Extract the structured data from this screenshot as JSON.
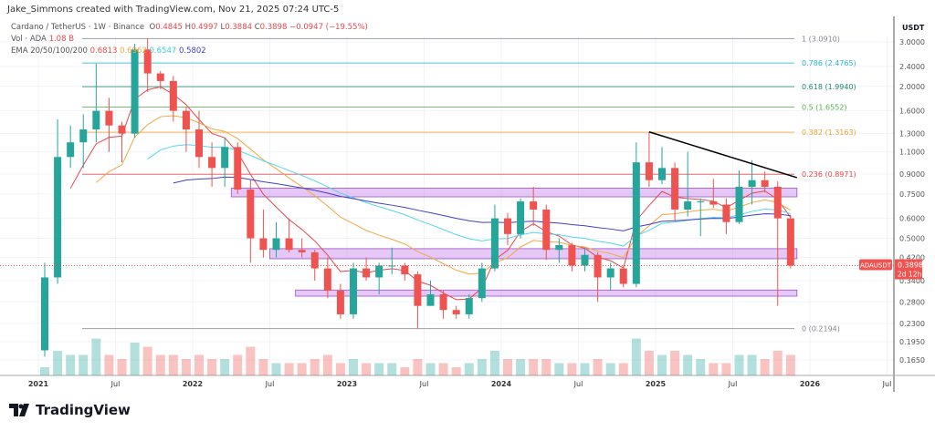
{
  "credit": "Jake_Simmons created with TradingView.com, Nov 21, 2025 07:24 UTC-5",
  "legend": {
    "symbol": "Cardano / TetherUS · 1W · Binance",
    "o_label": "O",
    "o": "0.4845",
    "h_label": "H",
    "h": "0.4997",
    "l_label": "L",
    "l": "0.3884",
    "c_label": "C",
    "c": "0.3898",
    "change": "−0.0947 (−19.55%)",
    "vol_label": "Vol · ADA",
    "vol": "1.08 B",
    "ema_label": "EMA 20/50/100/200",
    "ema20": "0.6813",
    "ema50": "0.6962",
    "ema100": "0.6547",
    "ema200": "0.5802"
  },
  "logo": "TradingView",
  "colors": {
    "up": "#26a69a",
    "down": "#ef5350",
    "ema20": "#e5484d",
    "ema50": "#f5a742",
    "ema100": "#56d6e8",
    "ema200": "#3f3fc8",
    "zone": "#c586e8"
  },
  "chart_data": {
    "type": "candlestick",
    "yscale": "log",
    "ylim": [
      0.15,
      3.4
    ],
    "axis_unit": "USDT",
    "y_ticks": [
      "3.0000",
      "2.4000",
      "2.0000",
      "1.6000",
      "1.3000",
      "1.1000",
      "0.9000",
      "0.7500",
      "0.6000",
      "0.5000",
      "0.4200",
      "0.3400",
      "0.2800",
      "0.2300",
      "0.1950",
      "0.1650"
    ],
    "x_ticks": [
      {
        "label": "2021",
        "date": 2021.0
      },
      {
        "label": "Jul",
        "date": 2021.5
      },
      {
        "label": "2022",
        "date": 2022.0
      },
      {
        "label": "Jul",
        "date": 2022.5
      },
      {
        "label": "2023",
        "date": 2023.0
      },
      {
        "label": "Jul",
        "date": 2023.5
      },
      {
        "label": "2024",
        "date": 2024.0
      },
      {
        "label": "Jul",
        "date": 2024.5
      },
      {
        "label": "2025",
        "date": 2025.0
      },
      {
        "label": "Jul",
        "date": 2025.5
      },
      {
        "label": "2026",
        "date": 2026.0
      },
      {
        "label": "Jul",
        "date": 2026.5
      }
    ],
    "candles": [
      [
        "2021-01",
        0.18,
        0.4,
        0.17,
        0.35
      ],
      [
        "2021-02",
        0.35,
        1.48,
        0.33,
        1.05
      ],
      [
        "2021-03",
        1.05,
        1.4,
        0.95,
        1.2
      ],
      [
        "2021-04",
        1.2,
        1.55,
        0.95,
        1.35
      ],
      [
        "2021-05",
        1.35,
        2.46,
        1.2,
        1.6
      ],
      [
        "2021-06",
        1.6,
        1.8,
        1.1,
        1.4
      ],
      [
        "2021-07",
        1.4,
        1.45,
        1.0,
        1.3
      ],
      [
        "2021-08",
        1.3,
        2.95,
        1.25,
        2.8
      ],
      [
        "2021-09",
        2.8,
        3.1,
        1.9,
        2.25
      ],
      [
        "2021-10",
        2.25,
        2.3,
        1.95,
        2.1
      ],
      [
        "2021-11",
        2.1,
        2.2,
        1.45,
        1.6
      ],
      [
        "2021-12",
        1.6,
        1.65,
        1.1,
        1.35
      ],
      [
        "2022-01",
        1.35,
        1.6,
        0.95,
        1.05
      ],
      [
        "2022-02",
        1.05,
        1.2,
        0.8,
        0.95
      ],
      [
        "2022-03",
        0.95,
        1.25,
        0.8,
        1.15
      ],
      [
        "2022-04",
        1.15,
        1.2,
        0.75,
        0.78
      ],
      [
        "2022-05",
        0.78,
        0.85,
        0.4,
        0.5
      ],
      [
        "2022-06",
        0.5,
        0.65,
        0.42,
        0.45
      ],
      [
        "2022-07",
        0.45,
        0.58,
        0.42,
        0.5
      ],
      [
        "2022-08",
        0.5,
        0.6,
        0.44,
        0.45
      ],
      [
        "2022-09",
        0.45,
        0.5,
        0.42,
        0.44
      ],
      [
        "2022-10",
        0.44,
        0.45,
        0.34,
        0.38
      ],
      [
        "2022-11",
        0.38,
        0.42,
        0.29,
        0.31
      ],
      [
        "2022-12",
        0.31,
        0.33,
        0.24,
        0.25
      ],
      [
        "2023-01",
        0.25,
        0.4,
        0.24,
        0.38
      ],
      [
        "2023-02",
        0.38,
        0.42,
        0.34,
        0.35
      ],
      [
        "2023-03",
        0.35,
        0.4,
        0.3,
        0.39
      ],
      [
        "2023-04",
        0.39,
        0.46,
        0.36,
        0.39
      ],
      [
        "2023-05",
        0.39,
        0.4,
        0.34,
        0.36
      ],
      [
        "2023-06",
        0.36,
        0.37,
        0.22,
        0.27
      ],
      [
        "2023-07",
        0.27,
        0.34,
        0.27,
        0.3
      ],
      [
        "2023-08",
        0.3,
        0.31,
        0.24,
        0.26
      ],
      [
        "2023-09",
        0.26,
        0.27,
        0.24,
        0.25
      ],
      [
        "2023-10",
        0.25,
        0.3,
        0.24,
        0.29
      ],
      [
        "2023-11",
        0.29,
        0.4,
        0.28,
        0.38
      ],
      [
        "2023-12",
        0.38,
        0.68,
        0.37,
        0.6
      ],
      [
        "2024-01",
        0.6,
        0.63,
        0.47,
        0.52
      ],
      [
        "2024-02",
        0.52,
        0.72,
        0.5,
        0.7
      ],
      [
        "2024-03",
        0.7,
        0.8,
        0.56,
        0.65
      ],
      [
        "2024-04",
        0.65,
        0.68,
        0.41,
        0.45
      ],
      [
        "2024-05",
        0.45,
        0.5,
        0.4,
        0.47
      ],
      [
        "2024-06",
        0.47,
        0.48,
        0.37,
        0.39
      ],
      [
        "2024-07",
        0.39,
        0.46,
        0.37,
        0.43
      ],
      [
        "2024-08",
        0.43,
        0.44,
        0.28,
        0.35
      ],
      [
        "2024-09",
        0.35,
        0.4,
        0.31,
        0.38
      ],
      [
        "2024-10",
        0.38,
        0.39,
        0.32,
        0.33
      ],
      [
        "2024-11",
        0.33,
        1.2,
        0.32,
        1.0
      ],
      [
        "2024-12",
        1.0,
        1.32,
        0.8,
        0.85
      ],
      [
        "2025-01",
        0.85,
        1.15,
        0.82,
        0.95
      ],
      [
        "2025-02",
        0.95,
        1.0,
        0.58,
        0.65
      ],
      [
        "2025-03",
        0.65,
        1.1,
        0.61,
        0.7
      ],
      [
        "2025-04",
        0.7,
        0.72,
        0.51,
        0.7
      ],
      [
        "2025-05",
        0.7,
        0.86,
        0.66,
        0.68
      ],
      [
        "2025-06",
        0.68,
        0.72,
        0.52,
        0.58
      ],
      [
        "2025-07",
        0.58,
        0.93,
        0.57,
        0.8
      ],
      [
        "2025-08",
        0.8,
        1.02,
        0.68,
        0.85
      ],
      [
        "2025-09",
        0.85,
        0.92,
        0.76,
        0.8
      ],
      [
        "2025-10",
        0.8,
        0.84,
        0.27,
        0.6
      ],
      [
        "2025-11",
        0.6,
        0.62,
        0.38,
        0.3898
      ]
    ],
    "volume_relative": [
      0.2,
      0.6,
      0.5,
      0.5,
      0.9,
      0.5,
      0.4,
      0.8,
      0.7,
      0.5,
      0.5,
      0.4,
      0.5,
      0.4,
      0.4,
      0.5,
      0.7,
      0.4,
      0.3,
      0.3,
      0.3,
      0.4,
      0.5,
      0.3,
      0.4,
      0.3,
      0.3,
      0.3,
      0.2,
      0.4,
      0.3,
      0.3,
      0.2,
      0.3,
      0.4,
      0.6,
      0.4,
      0.4,
      0.4,
      0.4,
      0.3,
      0.3,
      0.3,
      0.4,
      0.3,
      0.3,
      0.9,
      0.6,
      0.5,
      0.6,
      0.5,
      0.4,
      0.3,
      0.3,
      0.5,
      0.5,
      0.4,
      0.6,
      0.5
    ],
    "fib_levels": [
      {
        "label": "1 (3.0910)",
        "price": 3.091,
        "color": "#888888"
      },
      {
        "label": "0.786 (2.4765)",
        "price": 2.4765,
        "color": "#22b5c9"
      },
      {
        "label": "0.618 (1.9940)",
        "price": 1.994,
        "color": "#1e8a6e"
      },
      {
        "label": "0.5 (1.6552)",
        "price": 1.6552,
        "color": "#5bab4f"
      },
      {
        "label": "0.382 (1.3163)",
        "price": 1.3163,
        "color": "#f0a030"
      },
      {
        "label": "0.236 (0.8971)",
        "price": 0.8971,
        "color": "#e5484d"
      },
      {
        "label": "0 (0.2194)",
        "price": 0.2194,
        "color": "#888888"
      }
    ],
    "zones": [
      {
        "from": "2022-04",
        "to": "2025-11",
        "low": 0.73,
        "high": 0.79
      },
      {
        "from": "2022-07",
        "to": "2025-11",
        "low": 0.415,
        "high": 0.455
      },
      {
        "from": "2022-09",
        "to": "2025-11",
        "low": 0.295,
        "high": 0.312
      }
    ],
    "trendline": {
      "from": [
        "2024-12",
        1.32
      ],
      "to": [
        "2025-11",
        0.87
      ]
    },
    "last_price": {
      "label": "ADAUSDT",
      "price": "0.3898",
      "countdown": "2d 12h",
      "value": 0.3898
    }
  }
}
